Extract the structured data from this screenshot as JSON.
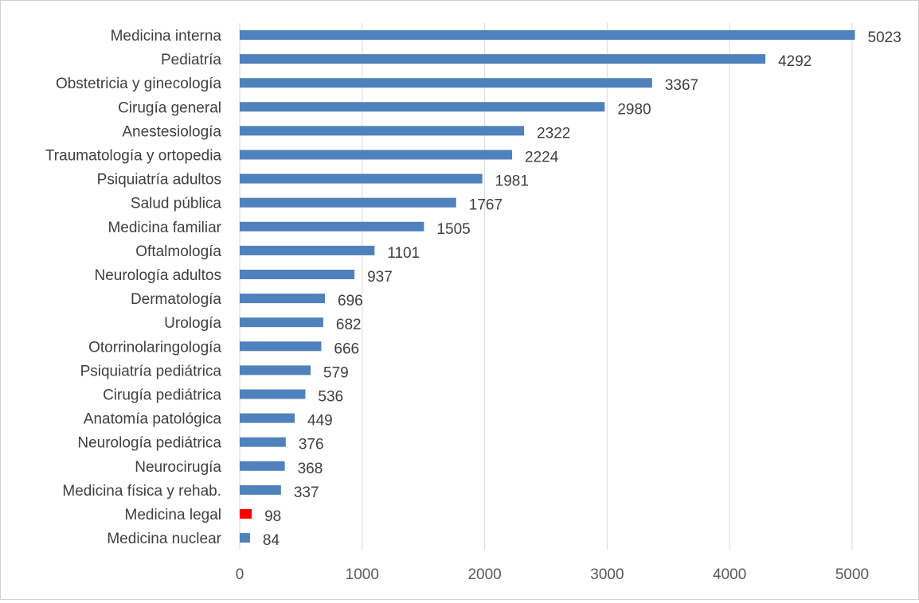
{
  "chart_data": {
    "type": "bar",
    "orientation": "horizontal",
    "title": "",
    "xlabel": "",
    "ylabel": "",
    "xlim": [
      0,
      5000
    ],
    "x_ticks": [
      0,
      1000,
      2000,
      3000,
      4000,
      5000
    ],
    "grid": "vertical",
    "legend": "none",
    "colors": {
      "bar": "#4f81bd",
      "highlight": "#ff0000",
      "highlight_label": "#ff0000"
    },
    "highlight_category": "Medicina legal",
    "categories": [
      "Medicina interna",
      "Pediatría",
      "Obstetricia y ginecología",
      "Cirugía general",
      "Anestesiología",
      "Traumatología y ortopedia",
      "Psiquiatría adultos",
      "Salud pública",
      "Medicina familiar",
      "Oftalmología",
      "Neurología adultos",
      "Dermatología",
      "Urología",
      "Otorrinolaringología",
      "Psiquiatría pediátrica",
      "Cirugía pediátrica",
      "Anatomía patológica",
      "Neurología pediátrica",
      "Neurocirugía",
      "Medicina física y rehab.",
      "Medicina legal",
      "Medicina nuclear"
    ],
    "values": [
      5023,
      4292,
      3367,
      2980,
      2322,
      2224,
      1981,
      1767,
      1505,
      1101,
      937,
      696,
      682,
      666,
      579,
      536,
      449,
      376,
      368,
      337,
      98,
      84
    ]
  }
}
